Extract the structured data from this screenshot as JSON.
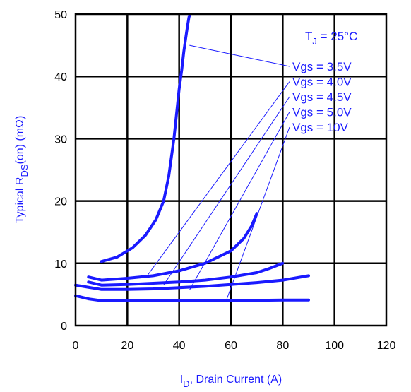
{
  "chart_data": {
    "type": "line",
    "xlabel_main": "I",
    "xlabel_sub": "D",
    "xlabel_rest": ", Drain Current (A)",
    "ylabel_main": "Typical R",
    "ylabel_sub": "DS",
    "ylabel_rest": "(on) (mΩ)",
    "xlim": [
      0,
      120
    ],
    "ylim": [
      0,
      50
    ],
    "x_ticks": [
      "0",
      "20",
      "40",
      "60",
      "80",
      "100",
      "120"
    ],
    "y_ticks": [
      "0",
      "10",
      "20",
      "30",
      "40",
      "50"
    ],
    "grid": true,
    "annotation_tj_main": "T",
    "annotation_tj_sub": "J",
    "annotation_tj_rest": " = 25°C",
    "colors": {
      "curve": "#1a1aff",
      "text": "#1a1aff",
      "grid": "#000000"
    },
    "series": [
      {
        "name": "Vgs = 3.5V",
        "x": [
          10,
          16,
          22,
          27,
          31,
          34,
          36,
          38,
          39,
          40,
          41,
          41.8,
          42.5,
          43.2,
          43.8,
          44.2
        ],
        "y": [
          10.3,
          11,
          12.5,
          14.5,
          17,
          20,
          24,
          30,
          34,
          38,
          41,
          44,
          46,
          48,
          49.5,
          50
        ]
      },
      {
        "name": "Vgs = 4.0V",
        "x": [
          5,
          10,
          20,
          30,
          40,
          50,
          60,
          65,
          68,
          70
        ],
        "y": [
          7.8,
          7.3,
          7.6,
          8,
          8.8,
          10,
          12,
          14,
          16,
          18
        ]
      },
      {
        "name": "Vgs = 4.5V",
        "x": [
          5,
          10,
          20,
          30,
          40,
          50,
          60,
          70,
          75,
          80
        ],
        "y": [
          7,
          6.5,
          6.6,
          6.8,
          7,
          7.3,
          7.8,
          8.5,
          9.2,
          10
        ]
      },
      {
        "name": "Vgs = 5.0V",
        "x": [
          0,
          10,
          20,
          30,
          40,
          50,
          60,
          70,
          80,
          90
        ],
        "y": [
          6.5,
          5.8,
          5.8,
          5.9,
          6.1,
          6.3,
          6.6,
          6.9,
          7.3,
          8
        ]
      },
      {
        "name": "Vgs = 10V",
        "x": [
          0,
          5,
          10,
          20,
          40,
          60,
          80,
          90
        ],
        "y": [
          4.8,
          4.3,
          4,
          4,
          4,
          4,
          4.1,
          4.1
        ]
      }
    ],
    "leader_lines": [
      {
        "label": "Vgs = 3.5V",
        "from": [
          44,
          45
        ]
      },
      {
        "label": "Vgs = 4.0V",
        "from": [
          28,
          8.2
        ]
      },
      {
        "label": "Vgs = 4.5V",
        "from": [
          34,
          6.5
        ]
      },
      {
        "label": "Vgs = 5.0V",
        "from": [
          44,
          5.7
        ]
      },
      {
        "label": "Vgs = 10V",
        "from": [
          58,
          3.8
        ]
      }
    ]
  }
}
